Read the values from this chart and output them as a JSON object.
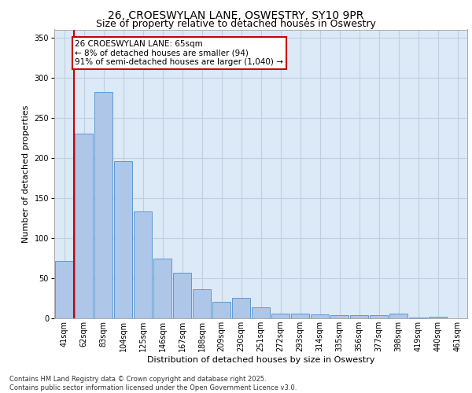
{
  "title_line1": "26, CROESWYLAN LANE, OSWESTRY, SY10 9PR",
  "title_line2": "Size of property relative to detached houses in Oswestry",
  "xlabel": "Distribution of detached houses by size in Oswestry",
  "ylabel": "Number of detached properties",
  "footnote": "Contains HM Land Registry data © Crown copyright and database right 2025.\nContains public sector information licensed under the Open Government Licence v3.0.",
  "bar_labels": [
    "41sqm",
    "62sqm",
    "83sqm",
    "104sqm",
    "125sqm",
    "146sqm",
    "167sqm",
    "188sqm",
    "209sqm",
    "230sqm",
    "251sqm",
    "272sqm",
    "293sqm",
    "314sqm",
    "335sqm",
    "356sqm",
    "377sqm",
    "398sqm",
    "419sqm",
    "440sqm",
    "461sqm"
  ],
  "bar_values": [
    72,
    230,
    282,
    196,
    133,
    74,
    57,
    36,
    21,
    25,
    14,
    6,
    6,
    5,
    4,
    4,
    4,
    6,
    1,
    2,
    0
  ],
  "bar_color": "#aec6e8",
  "bar_edge_color": "#5b9bd5",
  "ylim": [
    0,
    360
  ],
  "yticks": [
    0,
    50,
    100,
    150,
    200,
    250,
    300,
    350
  ],
  "marker_label_line1": "26 CROESWYLAN LANE: 65sqm",
  "marker_label_line2": "← 8% of detached houses are smaller (94)",
  "marker_label_line3": "91% of semi-detached houses are larger (1,040) →",
  "marker_color": "#cc0000",
  "bg_color": "#dce9f7",
  "grid_color": "#c0cfe0",
  "title_fontsize": 10,
  "subtitle_fontsize": 9,
  "xlabel_fontsize": 8,
  "ylabel_fontsize": 8,
  "tick_fontsize": 7,
  "annot_fontsize": 7.5,
  "footnote_fontsize": 6
}
